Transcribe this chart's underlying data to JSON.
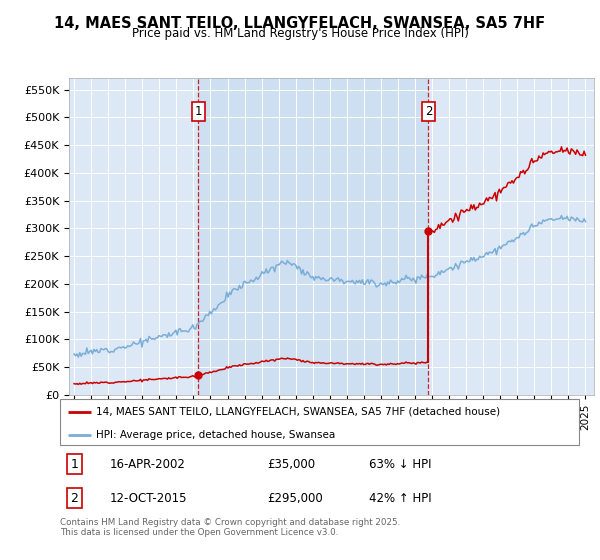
{
  "title": "14, MAES SANT TEILO, LLANGYFELACH, SWANSEA, SA5 7HF",
  "subtitle": "Price paid vs. HM Land Registry's House Price Index (HPI)",
  "sale1_date": 2002.29,
  "sale1_price": 35000,
  "sale2_date": 2015.79,
  "sale2_price": 295000,
  "hpi_label": "HPI: Average price, detached house, Swansea",
  "price_label": "14, MAES SANT TEILO, LLANGYFELACH, SWANSEA, SA5 7HF (detached house)",
  "footer": "Contains HM Land Registry data © Crown copyright and database right 2025.\nThis data is licensed under the Open Government Licence v3.0.",
  "red_color": "#cc0000",
  "blue_color": "#7aaed6",
  "bg_color": "#dce8f5",
  "bg_between": "#cddff0",
  "ylim_max": 570000,
  "xmin": 1994.7,
  "xmax": 2025.5
}
